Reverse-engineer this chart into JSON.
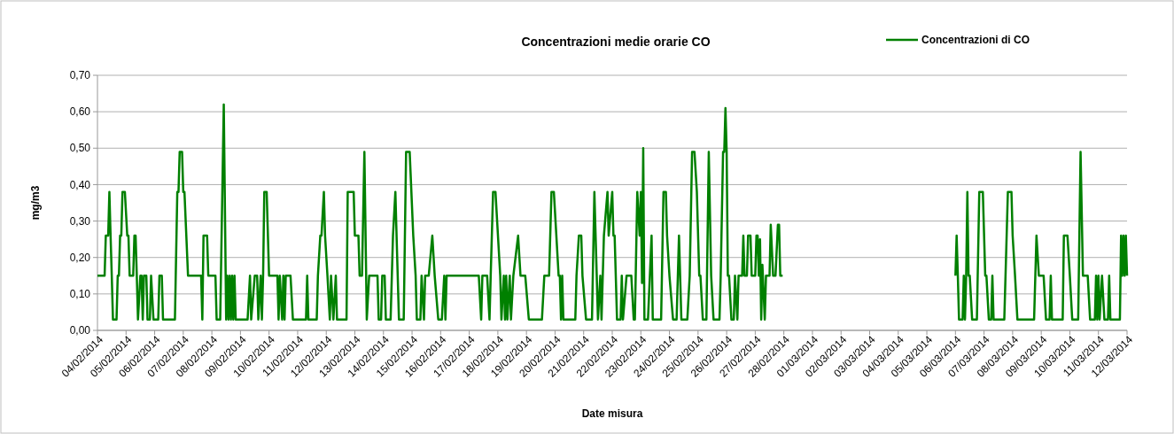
{
  "chart_data": {
    "type": "line",
    "title": "Concentrazioni medie orarie CO",
    "xlabel": "Date misura",
    "ylabel": "mg/m3",
    "xlim": [
      "2014-02-04",
      "2014-03-12"
    ],
    "xticks": [
      {
        "value": "2014-02-04",
        "label": "04/02/2014"
      },
      {
        "value": "2014-02-05",
        "label": "05/02/2014"
      },
      {
        "value": "2014-02-06",
        "label": "06/02/2014"
      },
      {
        "value": "2014-02-07",
        "label": "07/02/2014"
      },
      {
        "value": "2014-02-08",
        "label": "08/02/2014"
      },
      {
        "value": "2014-02-09",
        "label": "09/02/2014"
      },
      {
        "value": "2014-02-10",
        "label": "10/02/2014"
      },
      {
        "value": "2014-02-11",
        "label": "11/02/2014"
      },
      {
        "value": "2014-02-12",
        "label": "12/02/2014"
      },
      {
        "value": "2014-02-13",
        "label": "13/02/2014"
      },
      {
        "value": "2014-02-14",
        "label": "14/02/2014"
      },
      {
        "value": "2014-02-15",
        "label": "15/02/2014"
      },
      {
        "value": "2014-02-16",
        "label": "16/02/2014"
      },
      {
        "value": "2014-02-17",
        "label": "17/02/2014"
      },
      {
        "value": "2014-02-18",
        "label": "18/02/2014"
      },
      {
        "value": "2014-02-19",
        "label": "19/02/2014"
      },
      {
        "value": "2014-02-20",
        "label": "20/02/2014"
      },
      {
        "value": "2014-02-21",
        "label": "21/02/2014"
      },
      {
        "value": "2014-02-22",
        "label": "22/02/2014"
      },
      {
        "value": "2014-02-23",
        "label": "23/02/2014"
      },
      {
        "value": "2014-02-24",
        "label": "24/02/2014"
      },
      {
        "value": "2014-02-25",
        "label": "25/02/2014"
      },
      {
        "value": "2014-02-26",
        "label": "26/02/2014"
      },
      {
        "value": "2014-02-27",
        "label": "27/02/2014"
      },
      {
        "value": "2014-02-28",
        "label": "28/02/2014"
      },
      {
        "value": "2014-03-01",
        "label": "01/03/2014"
      },
      {
        "value": "2014-03-02",
        "label": "02/03/2014"
      },
      {
        "value": "2014-03-03",
        "label": "03/03/2014"
      },
      {
        "value": "2014-03-04",
        "label": "04/03/2014"
      },
      {
        "value": "2014-03-05",
        "label": "05/03/2014"
      },
      {
        "value": "2014-03-06",
        "label": "06/03/2014"
      },
      {
        "value": "2014-03-07",
        "label": "07/03/2014"
      },
      {
        "value": "2014-03-08",
        "label": "08/03/2014"
      },
      {
        "value": "2014-03-09",
        "label": "09/03/2014"
      },
      {
        "value": "2014-03-10",
        "label": "10/03/2014"
      },
      {
        "value": "2014-03-11",
        "label": "11/03/2014"
      },
      {
        "value": "2014-03-12",
        "label": "12/03/2014"
      }
    ],
    "ylim": [
      0,
      0.7
    ],
    "yticks": [
      {
        "value": 0,
        "label": "0,00"
      },
      {
        "value": 0.1,
        "label": "0,10"
      },
      {
        "value": 0.2,
        "label": "0,20"
      },
      {
        "value": 0.3,
        "label": "0,30"
      },
      {
        "value": 0.4,
        "label": "0,40"
      },
      {
        "value": 0.5,
        "label": "0,50"
      },
      {
        "value": 0.6,
        "label": "0,60"
      },
      {
        "value": 0.7,
        "label": "0,70"
      }
    ],
    "grid": "y",
    "legend": "top right",
    "marker": "none",
    "line_style": "solid",
    "series": [
      {
        "name": "Concentrazioni di CO",
        "color": "#008000",
        "x": [
          "2014-02-04T00:00",
          "2014-02-04T06:00",
          "2014-02-04T07:00",
          "2014-02-04T09:00",
          "2014-02-04T10:00",
          "2014-02-04T11:00",
          "2014-02-04T12:00",
          "2014-02-04T13:00",
          "2014-02-04T16:00",
          "2014-02-04T17:00",
          "2014-02-04T18:00",
          "2014-02-04T19:00",
          "2014-02-04T20:00",
          "2014-02-04T21:00",
          "2014-02-04T23:00",
          "2014-02-05T01:00",
          "2014-02-05T02:00",
          "2014-02-05T03:00",
          "2014-02-05T06:00",
          "2014-02-05T07:00",
          "2014-02-05T08:00",
          "2014-02-05T09:00",
          "2014-02-05T10:00",
          "2014-02-05T12:00",
          "2014-02-05T13:00",
          "2014-02-05T14:00",
          "2014-02-05T15:00",
          "2014-02-05T17:00",
          "2014-02-05T18:00",
          "2014-02-05T20:00",
          "2014-02-05T21:00",
          "2014-02-05T23:00",
          "2014-02-06T03:00",
          "2014-02-06T04:00",
          "2014-02-06T06:00",
          "2014-02-06T07:00",
          "2014-02-06T17:00",
          "2014-02-06T19:00",
          "2014-02-06T20:00",
          "2014-02-06T21:00",
          "2014-02-06T23:00",
          "2014-02-07T00:00",
          "2014-02-07T01:00",
          "2014-02-07T04:00",
          "2014-02-07T05:00",
          "2014-02-07T15:00",
          "2014-02-07T16:00",
          "2014-02-07T17:00",
          "2014-02-07T20:00",
          "2014-02-07T21:00",
          "2014-02-08T03:00",
          "2014-02-08T04:00",
          "2014-02-08T07:00",
          "2014-02-08T10:00",
          "2014-02-08T12:00",
          "2014-02-08T13:00",
          "2014-02-08T14:00",
          "2014-02-08T15:00",
          "2014-02-08T16:00",
          "2014-02-08T17:00",
          "2014-02-08T18:00",
          "2014-02-08T19:00",
          "2014-02-08T20:00",
          "2014-02-09T06:00",
          "2014-02-09T08:00",
          "2014-02-09T09:00",
          "2014-02-09T12:00",
          "2014-02-09T14:00",
          "2014-02-09T15:00",
          "2014-02-09T17:00",
          "2014-02-09T18:00",
          "2014-02-09T19:00",
          "2014-02-09T20:00",
          "2014-02-09T22:00",
          "2014-02-10T00:00",
          "2014-02-10T07:00",
          "2014-02-10T08:00",
          "2014-02-10T09:00",
          "2014-02-10T11:00",
          "2014-02-10T12:00",
          "2014-02-10T13:00",
          "2014-02-10T14:00",
          "2014-02-10T18:00",
          "2014-02-10T20:00",
          "2014-02-11T07:00",
          "2014-02-11T08:00",
          "2014-02-11T09:00",
          "2014-02-11T16:00",
          "2014-02-11T17:00",
          "2014-02-11T19:00",
          "2014-02-11T20:00",
          "2014-02-11T22:00",
          "2014-02-11T23:00",
          "2014-02-12T01:00",
          "2014-02-12T03:00",
          "2014-02-12T04:00",
          "2014-02-12T06:00",
          "2014-02-12T08:00",
          "2014-02-12T09:00",
          "2014-02-12T17:00",
          "2014-02-12T18:00",
          "2014-02-12T23:00",
          "2014-02-13T00:00",
          "2014-02-13T03:00",
          "2014-02-13T04:00",
          "2014-02-13T06:00",
          "2014-02-13T08:00",
          "2014-02-13T10:00",
          "2014-02-13T12:00",
          "2014-02-13T19:00",
          "2014-02-13T20:00",
          "2014-02-13T22:00",
          "2014-02-13T23:00",
          "2014-02-14T01:00",
          "2014-02-14T02:00",
          "2014-02-14T06:00",
          "2014-02-14T08:00",
          "2014-02-14T10:00",
          "2014-02-14T11:00",
          "2014-02-14T13:00",
          "2014-02-14T17:00",
          "2014-02-14T19:00",
          "2014-02-14T22:00",
          "2014-02-15T01:00",
          "2014-02-15T03:00",
          "2014-02-15T04:00",
          "2014-02-15T07:00",
          "2014-02-15T08:00",
          "2014-02-15T10:00",
          "2014-02-15T11:00",
          "2014-02-15T14:00",
          "2014-02-15T17:00",
          "2014-02-15T19:00",
          "2014-02-15T22:00",
          "2014-02-16T01:00",
          "2014-02-16T03:00",
          "2014-02-16T04:00",
          "2014-02-16T05:00",
          "2014-02-17T08:00",
          "2014-02-17T10:00",
          "2014-02-17T11:00",
          "2014-02-17T15:00",
          "2014-02-17T17:00",
          "2014-02-17T18:00",
          "2014-02-17T20:00",
          "2014-02-17T22:00",
          "2014-02-18T02:00",
          "2014-02-18T03:00",
          "2014-02-18T05:00",
          "2014-02-18T06:00",
          "2014-02-18T07:00",
          "2014-02-18T08:00",
          "2014-02-18T10:00",
          "2014-02-18T11:00",
          "2014-02-18T13:00",
          "2014-02-18T17:00",
          "2014-02-18T19:00",
          "2014-02-18T23:00",
          "2014-02-19T02:00",
          "2014-02-19T13:00",
          "2014-02-19T15:00",
          "2014-02-19T19:00",
          "2014-02-19T21:00",
          "2014-02-19T23:00",
          "2014-02-20T03:00",
          "2014-02-20T04:00",
          "2014-02-20T05:00",
          "2014-02-20T06:00",
          "2014-02-20T07:00",
          "2014-02-20T17:00",
          "2014-02-20T18:00",
          "2014-02-20T20:00",
          "2014-02-20T22:00",
          "2014-02-20T23:00",
          "2014-02-21T02:00",
          "2014-02-21T07:00",
          "2014-02-21T09:00",
          "2014-02-21T12:00",
          "2014-02-21T14:00",
          "2014-02-21T15:00",
          "2014-02-21T17:00",
          "2014-02-21T20:00",
          "2014-02-21T21:00",
          "2014-02-22T00:00",
          "2014-02-22T01:00",
          "2014-02-22T02:00",
          "2014-02-22T04:00",
          "2014-02-22T07:00",
          "2014-02-22T08:00",
          "2014-02-22T09:00",
          "2014-02-22T12:00",
          "2014-02-22T16:00",
          "2014-02-22T18:00",
          "2014-02-22T19:00",
          "2014-02-22T21:00",
          "2014-02-22T23:00",
          "2014-02-23T00:00",
          "2014-02-23T01:00",
          "2014-02-23T02:00",
          "2014-02-23T03:00",
          "2014-02-23T06:00",
          "2014-02-23T09:00",
          "2014-02-23T10:00",
          "2014-02-23T17:00",
          "2014-02-23T19:00",
          "2014-02-23T21:00",
          "2014-02-23T22:00",
          "2014-02-24T00:00",
          "2014-02-24T03:00",
          "2014-02-24T06:00",
          "2014-02-24T08:00",
          "2014-02-24T10:00",
          "2014-02-24T15:00",
          "2014-02-24T17:00",
          "2014-02-24T19:00",
          "2014-02-24T21:00",
          "2014-02-24T23:00",
          "2014-02-25T01:00",
          "2014-02-25T02:00",
          "2014-02-25T04:00",
          "2014-02-25T07:00",
          "2014-02-25T09:00",
          "2014-02-25T11:00",
          "2014-02-25T13:00",
          "2014-02-25T18:00",
          "2014-02-25T19:00",
          "2014-02-25T21:00",
          "2014-02-25T22:00",
          "2014-02-25T23:00",
          "2014-02-26T00:00",
          "2014-02-26T01:00",
          "2014-02-26T02:00",
          "2014-02-26T04:00",
          "2014-02-26T06:00",
          "2014-02-26T07:00",
          "2014-02-26T09:00",
          "2014-02-26T10:00",
          "2014-02-26T13:00",
          "2014-02-26T14:00",
          "2014-02-26T15:00",
          "2014-02-26T17:00",
          "2014-02-26T18:00",
          "2014-02-26T20:00",
          "2014-02-26T21:00",
          "2014-02-27T00:00",
          "2014-02-27T01:00",
          "2014-02-27T02:00",
          "2014-02-27T03:00",
          "2014-02-27T04:00",
          "2014-02-27T05:00",
          "2014-02-27T06:00",
          "2014-02-27T08:00",
          "2014-02-27T09:00",
          "2014-02-27T12:00",
          "2014-02-27T13:00",
          "2014-02-27T15:00",
          "2014-02-27T17:00",
          "2014-02-27T19:00",
          "2014-02-27T20:00",
          "2014-02-27T21:00",
          "2014-02-27T23:00",
          "2014-03-01T00:00",
          "2014-03-06T00:00",
          "2014-03-06T01:00",
          "2014-03-06T02:00",
          "2014-03-06T03:00",
          "2014-03-06T06:00",
          "2014-03-06T07:00",
          "2014-03-06T08:00",
          "2014-03-06T09:00",
          "2014-03-06T10:00",
          "2014-03-06T11:00",
          "2014-03-06T12:00",
          "2014-03-06T14:00",
          "2014-03-06T18:00",
          "2014-03-06T20:00",
          "2014-03-06T23:00",
          "2014-03-07T01:00",
          "2014-03-07T02:00",
          "2014-03-07T04:00",
          "2014-03-07T06:00",
          "2014-03-07T07:00",
          "2014-03-07T08:00",
          "2014-03-07T17:00",
          "2014-03-07T20:00",
          "2014-03-07T23:00",
          "2014-03-08T00:00",
          "2014-03-08T02:00",
          "2014-03-08T04:00",
          "2014-03-08T18:00",
          "2014-03-08T20:00",
          "2014-03-08T22:00",
          "2014-03-09T02:00",
          "2014-03-09T04:00",
          "2014-03-09T07:00",
          "2014-03-09T08:00",
          "2014-03-09T09:00",
          "2014-03-09T18:00",
          "2014-03-09T19:00",
          "2014-03-09T22:00",
          "2014-03-10T00:00",
          "2014-03-10T02:00",
          "2014-03-10T07:00",
          "2014-03-10T09:00",
          "2014-03-10T11:00",
          "2014-03-10T15:00",
          "2014-03-10T17:00",
          "2014-03-10T21:00",
          "2014-03-10T22:00",
          "2014-03-10T23:00",
          "2014-03-11T00:00",
          "2014-03-11T01:00",
          "2014-03-11T03:00",
          "2014-03-11T05:00",
          "2014-03-11T08:00",
          "2014-03-11T09:00",
          "2014-03-11T10:00",
          "2014-03-11T18:00",
          "2014-03-11T19:00",
          "2014-03-11T20:00",
          "2014-03-11T21:00",
          "2014-03-11T22:00",
          "2014-03-11T23:00",
          "2014-03-12T00:00"
        ],
        "values": [
          0.15,
          0.15,
          0.26,
          0.26,
          0.38,
          0.26,
          0.15,
          0.03,
          0.03,
          0.15,
          0.15,
          0.26,
          0.26,
          0.38,
          0.38,
          0.26,
          0.26,
          0.15,
          0.15,
          0.26,
          0.26,
          0.15,
          0.03,
          0.15,
          0.15,
          0.03,
          0.15,
          0.15,
          0.03,
          0.03,
          0.15,
          0.03,
          0.03,
          0.15,
          0.15,
          0.03,
          0.03,
          0.38,
          0.38,
          0.49,
          0.49,
          0.38,
          0.38,
          0.15,
          0.15,
          0.15,
          0.03,
          0.26,
          0.26,
          0.15,
          0.15,
          0.03,
          0.03,
          0.62,
          0.03,
          0.15,
          0.03,
          0.15,
          0.03,
          0.15,
          0.03,
          0.15,
          0.03,
          0.03,
          0.15,
          0.03,
          0.15,
          0.15,
          0.03,
          0.15,
          0.03,
          0.15,
          0.38,
          0.38,
          0.15,
          0.15,
          0.03,
          0.15,
          0.03,
          0.15,
          0.03,
          0.15,
          0.15,
          0.03,
          0.03,
          0.15,
          0.03,
          0.03,
          0.15,
          0.26,
          0.26,
          0.38,
          0.26,
          0.15,
          0.03,
          0.15,
          0.03,
          0.15,
          0.03,
          0.03,
          0.38,
          0.38,
          0.26,
          0.26,
          0.15,
          0.15,
          0.49,
          0.03,
          0.15,
          0.15,
          0.03,
          0.03,
          0.15,
          0.15,
          0.03,
          0.03,
          0.26,
          0.38,
          0.26,
          0.03,
          0.03,
          0.49,
          0.49,
          0.26,
          0.15,
          0.03,
          0.03,
          0.15,
          0.03,
          0.15,
          0.15,
          0.26,
          0.15,
          0.03,
          0.03,
          0.15,
          0.03,
          0.15,
          0.15,
          0.03,
          0.15,
          0.15,
          0.03,
          0.15,
          0.38,
          0.38,
          0.15,
          0.03,
          0.15,
          0.03,
          0.15,
          0.03,
          0.15,
          0.03,
          0.15,
          0.26,
          0.15,
          0.15,
          0.03,
          0.03,
          0.15,
          0.15,
          0.38,
          0.38,
          0.15,
          0.15,
          0.03,
          0.15,
          0.03,
          0.03,
          0.15,
          0.26,
          0.26,
          0.15,
          0.03,
          0.03,
          0.38,
          0.03,
          0.15,
          0.03,
          0.26,
          0.38,
          0.26,
          0.38,
          0.26,
          0.26,
          0.03,
          0.03,
          0.15,
          0.03,
          0.15,
          0.15,
          0.03,
          0.03,
          0.38,
          0.26,
          0.38,
          0.13,
          0.5,
          0.03,
          0.03,
          0.26,
          0.03,
          0.03,
          0.38,
          0.38,
          0.26,
          0.15,
          0.03,
          0.03,
          0.26,
          0.03,
          0.03,
          0.15,
          0.49,
          0.49,
          0.38,
          0.15,
          0.15,
          0.03,
          0.03,
          0.49,
          0.15,
          0.03,
          0.03,
          0.15,
          0.49,
          0.49,
          0.61,
          0.49,
          0.15,
          0.15,
          0.03,
          0.03,
          0.15,
          0.03,
          0.15,
          0.15,
          0.26,
          0.15,
          0.15,
          0.26,
          0.26,
          0.15,
          0.15,
          0.26,
          0.26,
          0.15,
          0.25,
          0.03,
          0.18,
          0.03,
          0.15,
          0.15,
          0.29,
          0.15,
          0.15,
          0.29,
          0.29,
          0.15,
          0.15,
          null,
          0.15,
          0.26,
          0.15,
          0.03,
          0.03,
          0.15,
          0.03,
          0.15,
          0.38,
          0.15,
          0.15,
          0.03,
          0.03,
          0.38,
          0.38,
          0.15,
          0.15,
          0.03,
          0.03,
          0.15,
          0.03,
          0.03,
          0.38,
          0.38,
          0.26,
          0.15,
          0.03,
          0.03,
          0.26,
          0.15,
          0.15,
          0.03,
          0.03,
          0.15,
          0.03,
          0.03,
          0.26,
          0.26,
          0.15,
          0.03,
          0.03,
          0.49,
          0.15,
          0.15,
          0.03,
          0.03,
          0.15,
          0.03,
          0.15,
          0.03,
          0.15,
          0.03,
          0.03,
          0.15,
          0.03,
          0.03,
          0.26,
          0.15,
          0.26,
          0.15,
          0.26,
          0.15
        ]
      }
    ]
  }
}
